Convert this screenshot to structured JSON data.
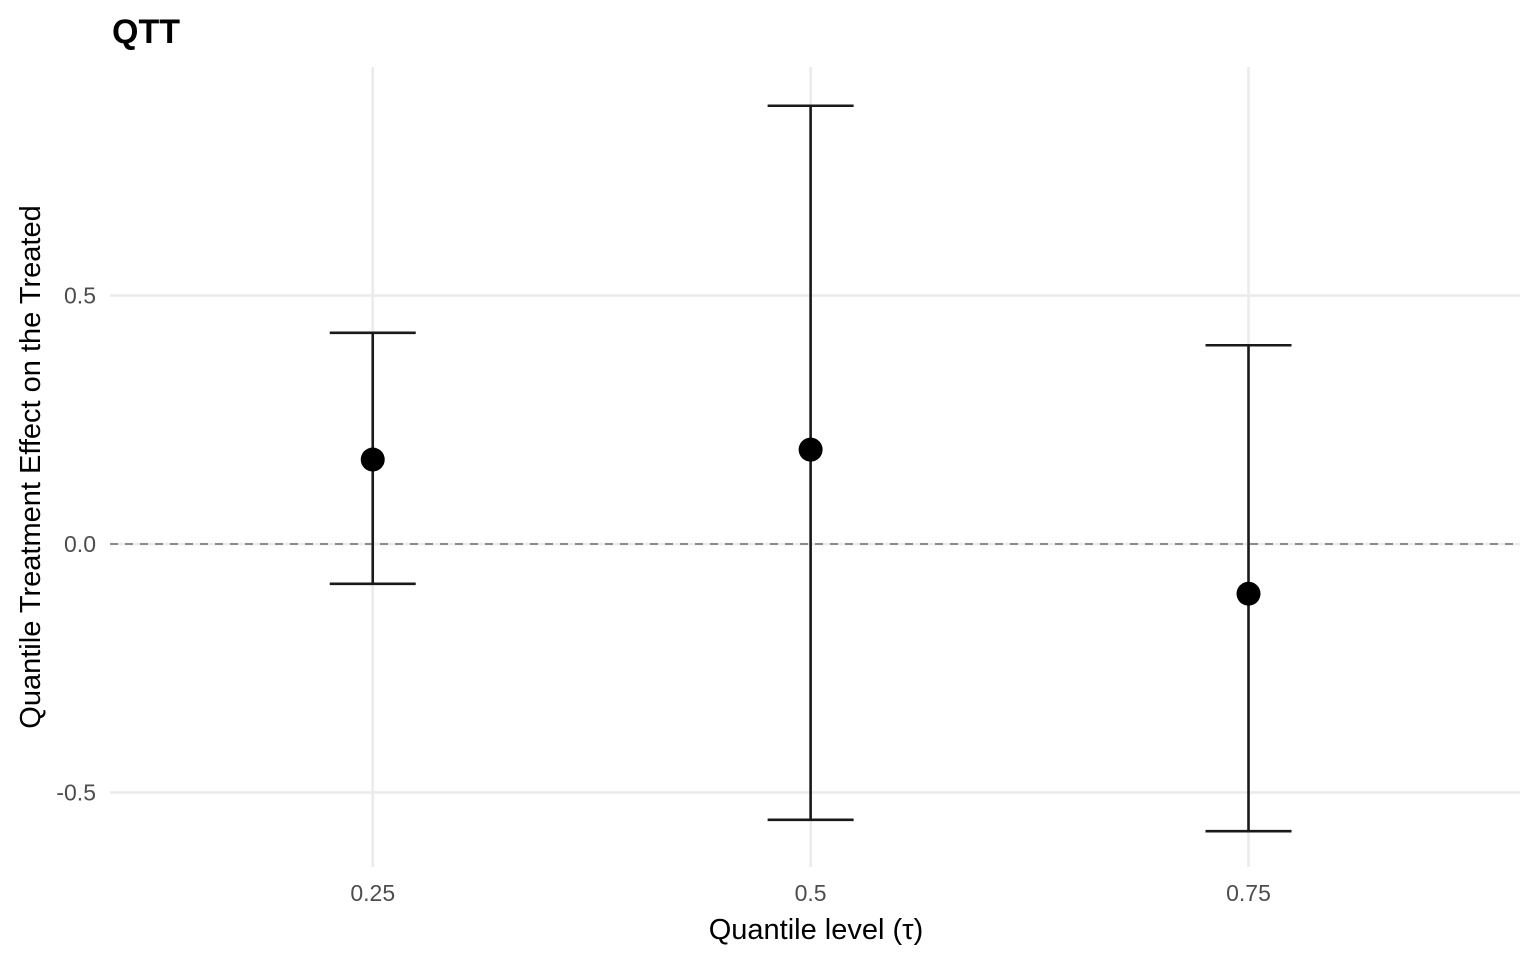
{
  "chart_data": {
    "type": "scatter",
    "title": "QTT",
    "xlabel": "Quantile level (τ)",
    "ylabel": "Quantile Treatment Effect on the Treated",
    "categories": [
      "0.25",
      "0.5",
      "0.75"
    ],
    "x": [
      0.25,
      0.5,
      0.75
    ],
    "values": [
      0.17,
      0.19,
      -0.1
    ],
    "lower": [
      -0.08,
      -0.555,
      -0.578
    ],
    "upper": [
      0.425,
      0.882,
      0.4
    ],
    "yticks": [
      -0.5,
      0.0,
      0.5
    ],
    "ytick_labels": [
      "-0.5",
      "0.0",
      "0.5"
    ],
    "xlim": [
      0.1,
      0.905
    ],
    "ylim": [
      -0.65,
      0.96
    ],
    "reference_line": {
      "y": 0,
      "style": "dashed"
    },
    "grid": true,
    "legend": "none"
  }
}
